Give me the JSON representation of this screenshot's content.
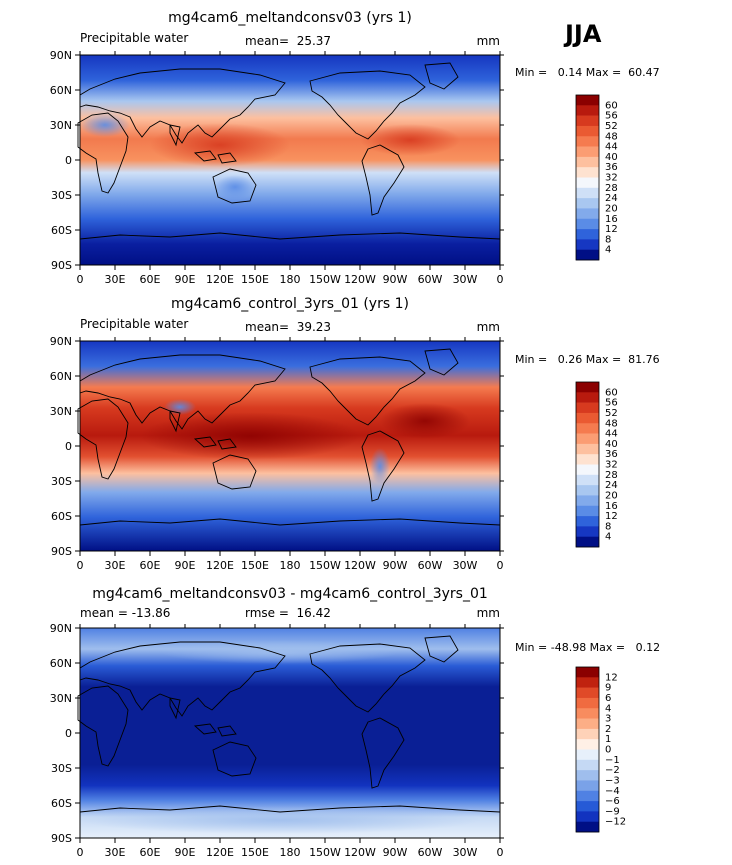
{
  "season": "JJA",
  "x_ticks": [
    "0",
    "30E",
    "60E",
    "90E",
    "120E",
    "150E",
    "180",
    "150W",
    "120W",
    "90W",
    "60W",
    "30W",
    "0"
  ],
  "y_ticks": [
    "90N",
    "60N",
    "30N",
    "0",
    "30S",
    "60S",
    "90S"
  ],
  "panels": [
    {
      "title": "mg4cam6_meltandconsv03 (yrs 1)",
      "left_label": "Precipitable water",
      "center_label": "mean=  25.37",
      "unit_label": "mm",
      "min_max": "Min =   0.14 Max =  60.47",
      "colorbar_labels": [
        "60",
        "56",
        "52",
        "48",
        "44",
        "40",
        "36",
        "32",
        "28",
        "24",
        "20",
        "16",
        "12",
        "8",
        "4"
      ],
      "colorbar_colors": [
        "#8b0000",
        "#b81a0e",
        "#d73a1f",
        "#ea5a32",
        "#f57b4f",
        "#fb9d73",
        "#fdc09f",
        "#fee2d0",
        "#f4f7fc",
        "#cfe0f7",
        "#a9c7f0",
        "#82aaeb",
        "#5a8ce6",
        "#2f63db",
        "#1637c2",
        "#000f85"
      ]
    },
    {
      "title": "mg4cam6_control_3yrs_01 (yrs 1)",
      "left_label": "Precipitable water",
      "center_label": "mean=  39.23",
      "unit_label": "mm",
      "min_max": "Min =   0.26 Max =  81.76",
      "colorbar_labels": [
        "60",
        "56",
        "52",
        "48",
        "44",
        "40",
        "36",
        "32",
        "28",
        "24",
        "20",
        "16",
        "12",
        "8",
        "4"
      ],
      "colorbar_colors": [
        "#8b0000",
        "#b81a0e",
        "#d73a1f",
        "#ea5a32",
        "#f57b4f",
        "#fb9d73",
        "#fdc09f",
        "#fee2d0",
        "#f4f7fc",
        "#cfe0f7",
        "#a9c7f0",
        "#82aaeb",
        "#5a8ce6",
        "#2f63db",
        "#1637c2",
        "#000f85"
      ]
    },
    {
      "title": "mg4cam6_meltandconsv03 - mg4cam6_control_3yrs_01",
      "left_label": "mean = -13.86",
      "center_label": "rmse =  16.42",
      "unit_label": "mm",
      "min_max": "Min = -48.98 Max =   0.12",
      "colorbar_labels": [
        "12",
        "9",
        "6",
        "4",
        "3",
        "2",
        "1",
        "0",
        "−1",
        "−2",
        "−3",
        "−4",
        "−6",
        "−9",
        "−12"
      ],
      "colorbar_colors": [
        "#8b0000",
        "#c0220f",
        "#e04a28",
        "#f06b40",
        "#f88c5f",
        "#fcae86",
        "#fed2b8",
        "#fff0e6",
        "#e7f0fb",
        "#c5d9f4",
        "#9fbeed",
        "#7aa2e8",
        "#5081e3",
        "#265ad6",
        "#1233bf",
        "#000f85"
      ]
    }
  ],
  "colors": {
    "land_outline": "#000000",
    "panel3_base": "#0a2a9e"
  }
}
